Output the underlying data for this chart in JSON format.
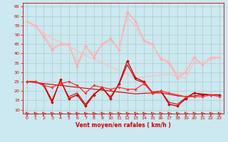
{
  "background_color": "#cce8f0",
  "grid_color": "#aacccc",
  "xlabel": "Vent moyen/en rafales ( km/h )",
  "xlabel_color": "#cc0000",
  "tick_color": "#cc0000",
  "xlim": [
    -0.5,
    23.5
  ],
  "ylim": [
    8,
    67
  ],
  "yticks": [
    10,
    15,
    20,
    25,
    30,
    35,
    40,
    45,
    50,
    55,
    60,
    65
  ],
  "xticks": [
    0,
    1,
    2,
    3,
    4,
    5,
    6,
    7,
    8,
    9,
    10,
    11,
    12,
    13,
    14,
    15,
    16,
    17,
    18,
    19,
    20,
    21,
    22,
    23
  ],
  "x": [
    0,
    1,
    2,
    3,
    4,
    5,
    6,
    7,
    8,
    9,
    10,
    11,
    12,
    13,
    14,
    15,
    16,
    17,
    18,
    19,
    20,
    21,
    22,
    23
  ],
  "series": [
    {
      "color": "#ffaaaa",
      "linewidth": 1.0,
      "marker": "D",
      "markersize": 2.0,
      "y": [
        57,
        55,
        49,
        42,
        45,
        45,
        33,
        44,
        38,
        45,
        48,
        42,
        62,
        57,
        47,
        45,
        37,
        35,
        27,
        30,
        38,
        34,
        38,
        38
      ]
    },
    {
      "color": "#ffbbbb",
      "linewidth": 0.8,
      "marker": null,
      "markersize": 0,
      "y": [
        57,
        54.0,
        51.0,
        48.0,
        46.0,
        44.0,
        41.5,
        39.0,
        37.0,
        35.0,
        33.0,
        31.0,
        29.0,
        27.0,
        27.5,
        28.0,
        28.5,
        29.0,
        27.5,
        27.0,
        35.5,
        35.0,
        36.5,
        38.0
      ]
    },
    {
      "color": "#ffbbbb",
      "linewidth": 0.8,
      "marker": null,
      "markersize": 0,
      "y": [
        57,
        55.0,
        50.5,
        43.5,
        44.5,
        44.5,
        35.0,
        43.5,
        39.5,
        44.5,
        47.0,
        42.0,
        59.0,
        54.5,
        46.5,
        44.5,
        38.0,
        36.0,
        28.5,
        30.5,
        37.5,
        34.5,
        37.5,
        38.0
      ]
    },
    {
      "color": "#cc0000",
      "linewidth": 1.0,
      "marker": "D",
      "markersize": 2.0,
      "y": [
        25,
        25,
        23,
        14,
        26,
        16,
        18,
        12,
        18,
        22,
        16,
        24,
        36,
        27,
        25,
        19,
        20,
        13,
        12,
        16,
        19,
        18,
        18,
        18
      ]
    },
    {
      "color": "#cc0000",
      "linewidth": 0.8,
      "marker": null,
      "markersize": 0,
      "y": [
        25,
        24.5,
        24.0,
        23.5,
        23.0,
        22.5,
        22.0,
        21.5,
        21.0,
        20.5,
        20.0,
        19.5,
        19.0,
        18.5,
        18.8,
        19.0,
        19.0,
        18.3,
        17.5,
        17.0,
        17.5,
        18.0,
        18.0,
        18.0
      ]
    },
    {
      "color": "#cc0000",
      "linewidth": 0.8,
      "marker": null,
      "markersize": 0,
      "y": [
        25,
        25.0,
        23.5,
        15.0,
        25.5,
        17.0,
        19.0,
        13.0,
        18.5,
        21.5,
        17.0,
        23.5,
        34.0,
        26.0,
        24.5,
        19.5,
        20.0,
        14.0,
        13.0,
        16.5,
        19.0,
        18.5,
        18.0,
        18.0
      ]
    },
    {
      "color": "#ff3333",
      "linewidth": 0.9,
      "marker": "D",
      "markersize": 1.8,
      "y": [
        25,
        25,
        23,
        22,
        24,
        25,
        23,
        19,
        23,
        22,
        21,
        22,
        21,
        21,
        24,
        19,
        20,
        19,
        18,
        17,
        17,
        17,
        18,
        17
      ]
    }
  ]
}
